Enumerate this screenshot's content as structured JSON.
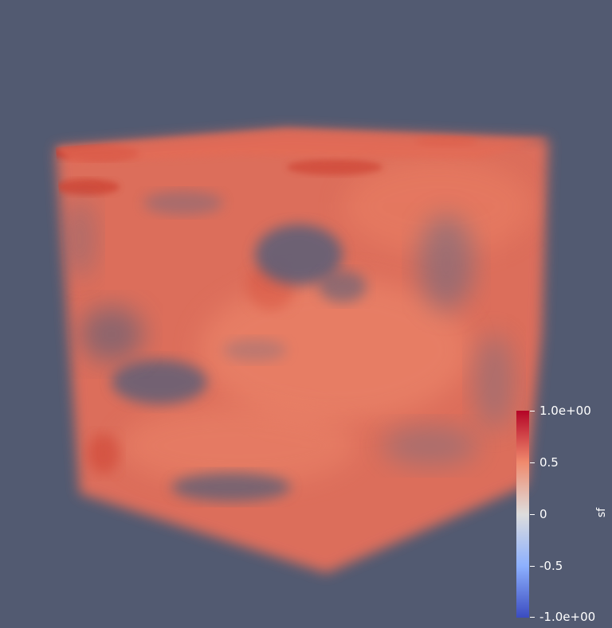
{
  "scene": {
    "background_color": "#525a71",
    "volume_colors": {
      "base": "#e8705a",
      "bright": "#f08a6d",
      "dark": "#c73b2f",
      "hole": "#525a71"
    }
  },
  "colorbar": {
    "title": "sf",
    "max_label": "1.0e+00",
    "ticks": [
      {
        "label": "0.5"
      },
      {
        "label": "0"
      },
      {
        "label": "-0.5"
      }
    ],
    "min_label": "-1.0e+00",
    "colormap": [
      "#b40426",
      "#f08a6d",
      "#dddddd",
      "#8db0fe",
      "#3b4cc0"
    ]
  }
}
